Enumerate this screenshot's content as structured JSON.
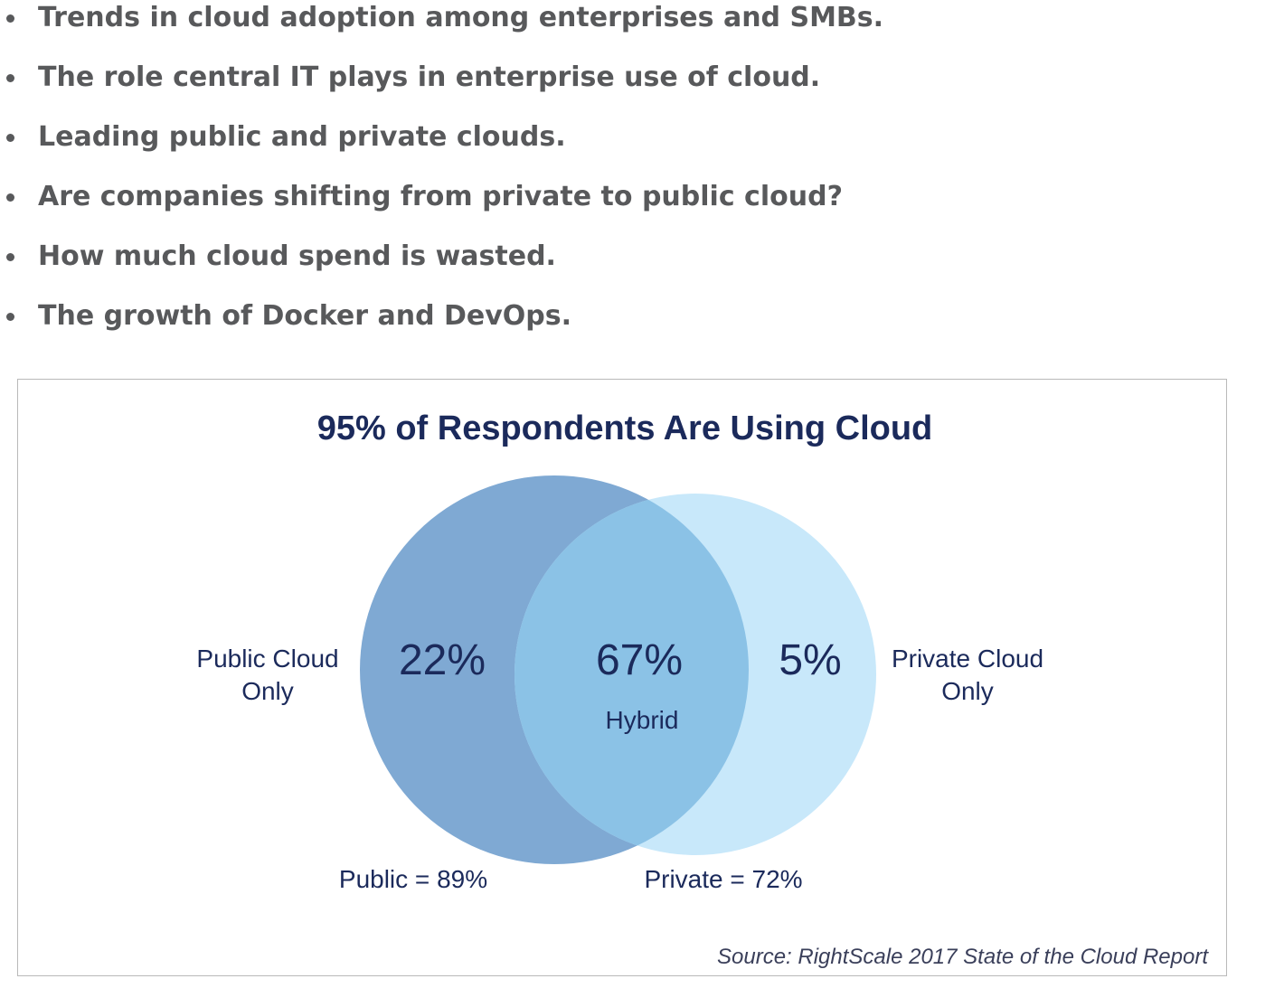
{
  "bullets": [
    "Trends in cloud adoption among enterprises and SMBs.",
    "The role central IT plays in enterprise use of cloud.",
    "Leading public and private clouds.",
    "Are companies shifting from private to public cloud?",
    "How much cloud spend is wasted.",
    "The growth of Docker and DevOps."
  ],
  "figure": {
    "title": "95% of Respondents Are Using Cloud",
    "public_only": {
      "label_line1": "Public Cloud",
      "label_line2": "Only",
      "value": "22%"
    },
    "hybrid": {
      "value": "67%",
      "label": "Hybrid"
    },
    "private_only": {
      "label_line1": "Private Cloud",
      "label_line2": "Only",
      "value": "5%"
    },
    "public_total": "Public = 89%",
    "private_total": "Private = 72%",
    "source": "Source: RightScale 2017 State of the Cloud Report",
    "colors": {
      "public_circle": "#7fa9d3",
      "private_circle": "#c8e8fa",
      "overlap": "#8bc2e6",
      "text": "#1b2a5b"
    }
  }
}
